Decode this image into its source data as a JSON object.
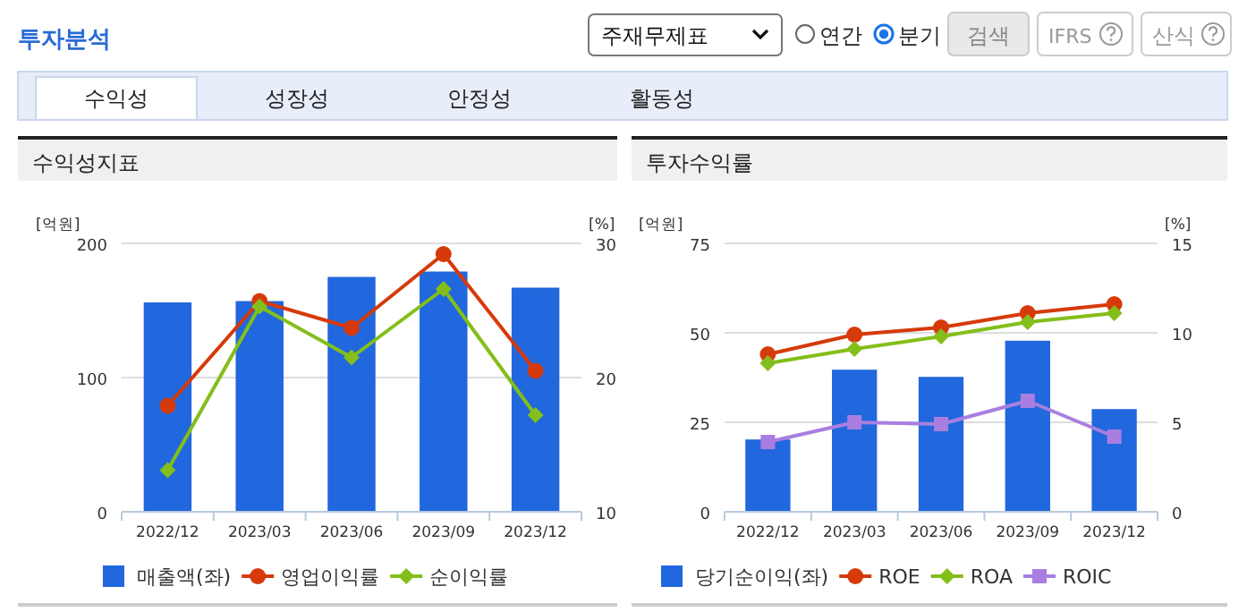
{
  "chart_data": [
    {
      "type": "other",
      "title": "투자분석",
      "annotations": [
        "주재무제표",
        "연간",
        "분기",
        "검색",
        "IFRS",
        "산식",
        "수익성",
        "성장성",
        "안정성",
        "활동성"
      ]
    },
    {
      "type": "bar",
      "title": "수익성지표",
      "ylabel": "[억원]",
      "y2label": "[%]",
      "categories": [
        "2022/12",
        "2023/03",
        "2023/06",
        "2023/09",
        "2023/12"
      ],
      "ylim": [
        0,
        200
      ],
      "yticks": [
        0,
        100,
        200
      ],
      "y2lim": [
        10,
        30
      ],
      "y2ticks": [
        10,
        20,
        30
      ],
      "grid": "y",
      "legend": "bottom",
      "series": [
        {
          "name": "매출액(좌)",
          "type": "bar",
          "color": "#2167dd",
          "values": [
            156,
            157,
            175,
            179,
            167
          ]
        },
        {
          "name": "영업이익률",
          "type": "line",
          "axis": "y2",
          "marker": "circle",
          "color": "#d63a0a",
          "values": [
            17.9,
            25.7,
            23.7,
            29.2,
            20.5
          ]
        },
        {
          "name": "순이익률",
          "type": "line",
          "axis": "y2",
          "marker": "diamond",
          "color": "#84be1a",
          "values": [
            13.1,
            25.3,
            21.5,
            26.6,
            17.2
          ]
        }
      ]
    },
    {
      "type": "bar",
      "title": "투자수익률",
      "ylabel": "[억원]",
      "y2label": "[%]",
      "categories": [
        "2022/12",
        "2023/03",
        "2023/06",
        "2023/09",
        "2023/12"
      ],
      "ylim": [
        0,
        75
      ],
      "yticks": [
        0,
        25,
        50,
        75
      ],
      "y2lim": [
        0,
        15
      ],
      "y2ticks": [
        0,
        5,
        10,
        15
      ],
      "grid": "y",
      "legend": "bottom",
      "series": [
        {
          "name": "당기순이익(좌)",
          "type": "bar",
          "color": "#2167dd",
          "values": [
            20.2,
            39.7,
            37.7,
            47.8,
            28.7
          ]
        },
        {
          "name": "ROE",
          "type": "line",
          "axis": "y2",
          "marker": "circle",
          "color": "#d63a0a",
          "values": [
            8.8,
            9.9,
            10.3,
            11.1,
            11.6
          ]
        },
        {
          "name": "ROA",
          "type": "line",
          "axis": "y2",
          "marker": "diamond",
          "color": "#84be1a",
          "values": [
            8.3,
            9.1,
            9.8,
            10.6,
            11.1
          ]
        },
        {
          "name": "ROIC",
          "type": "line",
          "axis": "y2",
          "marker": "square",
          "color": "#a87fe0",
          "values": [
            3.9,
            5.0,
            4.9,
            6.2,
            4.2
          ]
        }
      ]
    }
  ]
}
